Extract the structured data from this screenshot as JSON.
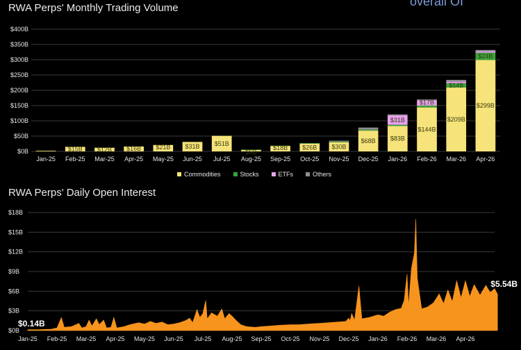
{
  "top_title": "RWA Perps' Monthly Trading Volume",
  "bottom_title": "RWA Perps' Daily Open Interest",
  "corner_text": "overall OI",
  "colors": {
    "commodities": "#f6e47a",
    "stocks": "#3aa33a",
    "etfs": "#e7a2ee",
    "others": "#8e8e8e",
    "area": "#f7941d",
    "grid": "#3a3a3a",
    "text": "#e6e6e6"
  },
  "chart_data": [
    {
      "type": "bar",
      "stacked": true,
      "title": "RWA Perps' Monthly Trading Volume",
      "categories": [
        "Jan-25",
        "Feb-25",
        "Mar-25",
        "Apr-25",
        "May-25",
        "Jun-25",
        "Jul-25",
        "Aug-25",
        "Sep-25",
        "Oct-25",
        "Nov-25",
        "Dec-25",
        "Jan-26",
        "Feb-26",
        "Mar-26",
        "Apr-26"
      ],
      "yticks": [
        "$0B",
        "$50B",
        "$100B",
        "$150B",
        "$200B",
        "$250B",
        "$300B",
        "$350B",
        "$400B"
      ],
      "ylim": [
        0,
        400
      ],
      "legend_position": "bottom",
      "series": [
        {
          "name": "Commodities",
          "values": [
            2,
            15,
            12,
            16,
            21,
            31,
            51,
            5,
            18,
            26,
            30,
            68,
            83,
            144,
            209,
            299
          ]
        },
        {
          "name": "Stocks",
          "values": [
            0,
            0,
            0,
            0,
            0,
            0,
            0,
            1,
            1,
            1,
            2,
            3,
            4,
            6,
            14,
            24
          ]
        },
        {
          "name": "ETFs",
          "values": [
            0,
            0,
            0,
            0,
            0,
            0,
            0,
            0,
            0,
            0,
            0,
            0,
            31,
            17,
            6,
            5
          ]
        },
        {
          "name": "Others",
          "values": [
            0,
            0,
            0,
            0,
            0,
            0,
            0,
            0,
            0,
            0,
            3,
            7,
            3,
            3,
            5,
            4
          ]
        }
      ],
      "data_labels": [
        {
          "category": "Feb-25",
          "series": "Commodities",
          "text": "$15B"
        },
        {
          "category": "Mar-25",
          "series": "Commodities",
          "text": "$12B"
        },
        {
          "category": "Apr-25",
          "series": "Commodities",
          "text": "$16B"
        },
        {
          "category": "May-25",
          "series": "Commodities",
          "text": "$21B"
        },
        {
          "category": "Jun-25",
          "series": "Commodities",
          "text": "$31B"
        },
        {
          "category": "Jul-25",
          "series": "Commodities",
          "text": "$51B"
        },
        {
          "category": "Aug-25",
          "series": "Commodities",
          "text": "$5B"
        },
        {
          "category": "Sep-25",
          "series": "Commodities",
          "text": "$18B"
        },
        {
          "category": "Oct-25",
          "series": "Commodities",
          "text": "$26B"
        },
        {
          "category": "Nov-25",
          "series": "Commodities",
          "text": "$30B"
        },
        {
          "category": "Dec-25",
          "series": "Commodities",
          "text": "$68B"
        },
        {
          "category": "Jan-26",
          "series": "Commodities",
          "text": "$83B"
        },
        {
          "category": "Jan-26",
          "series": "ETFs",
          "text": "$31B"
        },
        {
          "category": "Feb-26",
          "series": "Commodities",
          "text": "$144B"
        },
        {
          "category": "Feb-26",
          "series": "ETFs",
          "text": "$17B"
        },
        {
          "category": "Mar-26",
          "series": "Commodities",
          "text": "$209B"
        },
        {
          "category": "Mar-26",
          "series": "Stocks",
          "text": "$14B"
        },
        {
          "category": "Apr-26",
          "series": "Commodities",
          "text": "$299B"
        },
        {
          "category": "Apr-26",
          "series": "Stocks",
          "text": "$24B"
        }
      ]
    },
    {
      "type": "area",
      "title": "RWA Perps' Daily Open Interest",
      "xticks": [
        "Jan-25",
        "Feb-25",
        "Mar-25",
        "Apr-25",
        "May-25",
        "Jun-25",
        "Jul-25",
        "Aug-25",
        "Sep-25",
        "Oct-25",
        "Nov-25",
        "Dec-25",
        "Jan-26",
        "Feb-26",
        "Mar-26",
        "Apr-26"
      ],
      "yticks": [
        "$0B",
        "$3B",
        "$6B",
        "$9B",
        "$12B",
        "$15B",
        "$18B"
      ],
      "ylim": [
        0,
        18
      ],
      "x_unit": "months since Jan-25",
      "points": [
        [
          0,
          0.14
        ],
        [
          0.4,
          0.15
        ],
        [
          0.8,
          0.2
        ],
        [
          1.0,
          0.4
        ],
        [
          1.15,
          2.0
        ],
        [
          1.25,
          0.5
        ],
        [
          1.5,
          0.6
        ],
        [
          1.75,
          1.1
        ],
        [
          1.85,
          0.4
        ],
        [
          2.0,
          0.6
        ],
        [
          2.1,
          1.6
        ],
        [
          2.2,
          0.7
        ],
        [
          2.35,
          1.8
        ],
        [
          2.45,
          0.9
        ],
        [
          2.6,
          1.6
        ],
        [
          2.7,
          0.4
        ],
        [
          2.85,
          0.5
        ],
        [
          2.95,
          2.0
        ],
        [
          3.05,
          0.4
        ],
        [
          3.3,
          0.6
        ],
        [
          3.5,
          0.9
        ],
        [
          3.8,
          1.2
        ],
        [
          4.0,
          1.0
        ],
        [
          4.2,
          1.4
        ],
        [
          4.4,
          1.1
        ],
        [
          4.6,
          1.3
        ],
        [
          4.8,
          0.9
        ],
        [
          5.0,
          1.0
        ],
        [
          5.2,
          1.2
        ],
        [
          5.4,
          1.5
        ],
        [
          5.55,
          1.9
        ],
        [
          5.65,
          1.2
        ],
        [
          5.8,
          3.2
        ],
        [
          5.9,
          2.0
        ],
        [
          6.0,
          2.6
        ],
        [
          6.1,
          4.6
        ],
        [
          6.15,
          1.8
        ],
        [
          6.3,
          2.7
        ],
        [
          6.5,
          2.2
        ],
        [
          6.65,
          3.3
        ],
        [
          6.75,
          1.8
        ],
        [
          6.9,
          2.6
        ],
        [
          7.0,
          2.2
        ],
        [
          7.15,
          1.5
        ],
        [
          7.3,
          0.9
        ],
        [
          7.5,
          0.6
        ],
        [
          7.8,
          0.5
        ],
        [
          8.0,
          0.6
        ],
        [
          8.3,
          0.7
        ],
        [
          8.6,
          0.8
        ],
        [
          9.0,
          0.9
        ],
        [
          9.3,
          0.9
        ],
        [
          9.6,
          1.0
        ],
        [
          10.0,
          1.1
        ],
        [
          10.3,
          1.2
        ],
        [
          10.6,
          1.3
        ],
        [
          10.9,
          1.4
        ],
        [
          11.0,
          1.9
        ],
        [
          11.05,
          1.5
        ],
        [
          11.1,
          2.6
        ],
        [
          11.2,
          1.6
        ],
        [
          11.35,
          6.8
        ],
        [
          11.45,
          1.8
        ],
        [
          11.7,
          2.0
        ],
        [
          12.0,
          2.4
        ],
        [
          12.2,
          2.2
        ],
        [
          12.4,
          2.8
        ],
        [
          12.6,
          3.2
        ],
        [
          12.8,
          3.4
        ],
        [
          12.9,
          4.6
        ],
        [
          13.0,
          8.6
        ],
        [
          13.05,
          3.8
        ],
        [
          13.15,
          9.5
        ],
        [
          13.25,
          11.8
        ],
        [
          13.3,
          17.0
        ],
        [
          13.35,
          8.0
        ],
        [
          13.5,
          3.3
        ],
        [
          13.7,
          3.6
        ],
        [
          13.9,
          4.2
        ],
        [
          14.1,
          5.6
        ],
        [
          14.25,
          4.1
        ],
        [
          14.4,
          6.2
        ],
        [
          14.55,
          4.4
        ],
        [
          14.7,
          7.6
        ],
        [
          14.85,
          5.0
        ],
        [
          15.0,
          7.6
        ],
        [
          15.15,
          5.2
        ],
        [
          15.3,
          7.0
        ],
        [
          15.5,
          5.4
        ],
        [
          15.7,
          6.9
        ],
        [
          15.85,
          5.8
        ],
        [
          16.0,
          6.4
        ],
        [
          16.1,
          5.54
        ]
      ],
      "annotations": [
        {
          "x": 0,
          "y": 0.14,
          "text": "$0.14B"
        },
        {
          "x": 16.1,
          "y": 5.54,
          "text": "$5.54B"
        }
      ]
    }
  ],
  "legend": [
    {
      "label": "Commodities",
      "color": "#f6e47a"
    },
    {
      "label": "Stocks",
      "color": "#3aa33a"
    },
    {
      "label": "ETFs",
      "color": "#e7a2ee"
    },
    {
      "label": "Others",
      "color": "#8e8e8e"
    }
  ]
}
